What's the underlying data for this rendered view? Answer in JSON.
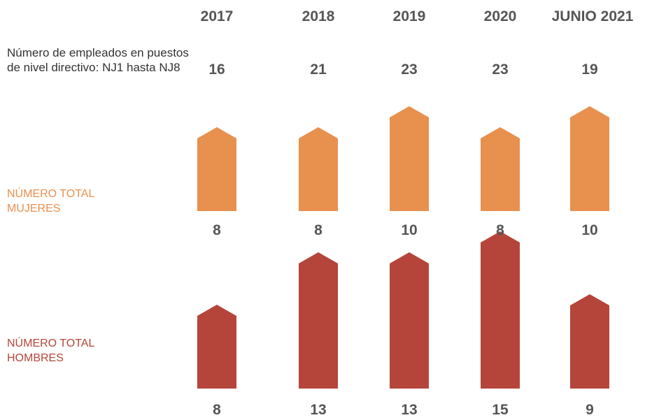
{
  "description": "Número de empleados en puestos de nivel directivo: NJ1 hasta NJ8",
  "years": [
    "2017",
    "2018",
    "2019",
    "2020",
    "JUNIO 2021"
  ],
  "totals": [
    "16",
    "21",
    "23",
    "23",
    "19"
  ],
  "mujeres_label": "NÚMERO TOTAL MUJERES",
  "hombres_label": "NÚMERO TOTAL HOMBRES",
  "colors": {
    "mujeres": "#E8904E",
    "hombres": "#B5453A",
    "text": "#555555"
  },
  "chart_data": {
    "type": "bar",
    "categories": [
      "2017",
      "2018",
      "2019",
      "2020",
      "JUNIO 2021"
    ],
    "series": [
      {
        "name": "NÚMERO TOTAL MUJERES",
        "values": [
          8,
          8,
          10,
          8,
          10
        ]
      },
      {
        "name": "NÚMERO TOTAL HOMBRES",
        "values": [
          8,
          13,
          13,
          15,
          9
        ]
      }
    ],
    "totals": [
      16,
      21,
      23,
      23,
      19
    ],
    "title": "",
    "xlabel": "",
    "ylabel": ""
  }
}
